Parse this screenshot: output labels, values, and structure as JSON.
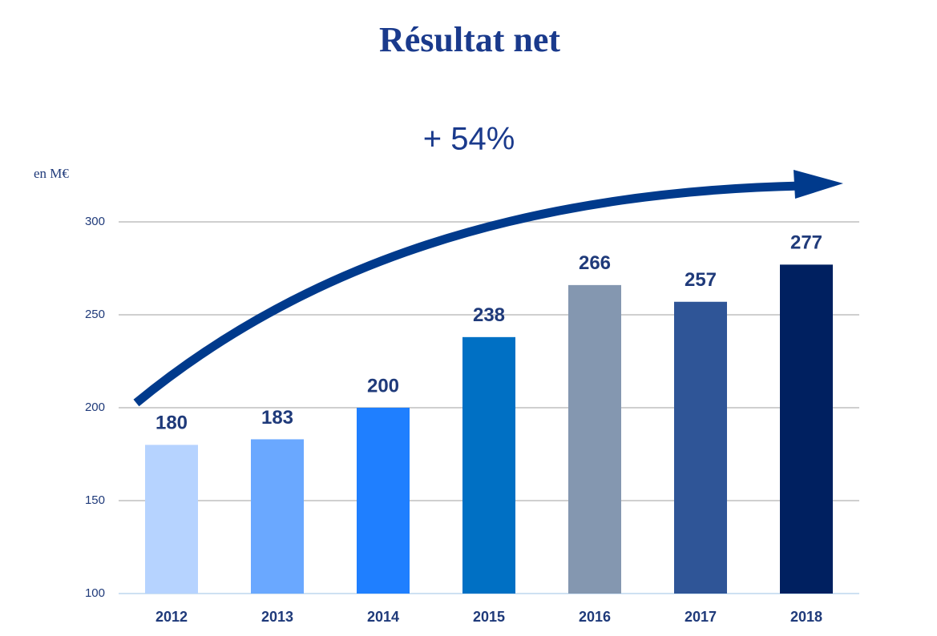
{
  "chart_data": {
    "type": "bar",
    "title": "Résultat net",
    "annotation": "+ 54%",
    "y_label": "en M€",
    "categories": [
      "2012",
      "2013",
      "2014",
      "2015",
      "2016",
      "2017",
      "2018"
    ],
    "values": [
      180,
      183,
      200,
      238,
      266,
      257,
      277
    ],
    "colors": [
      "#b6d3ff",
      "#6aa8ff",
      "#1f7fff",
      "#0070c4",
      "#8497b0",
      "#2f5597",
      "#002060"
    ],
    "ylim": [
      100,
      300
    ],
    "yticks": [
      100,
      150,
      200,
      250,
      300
    ],
    "grid": true
  }
}
